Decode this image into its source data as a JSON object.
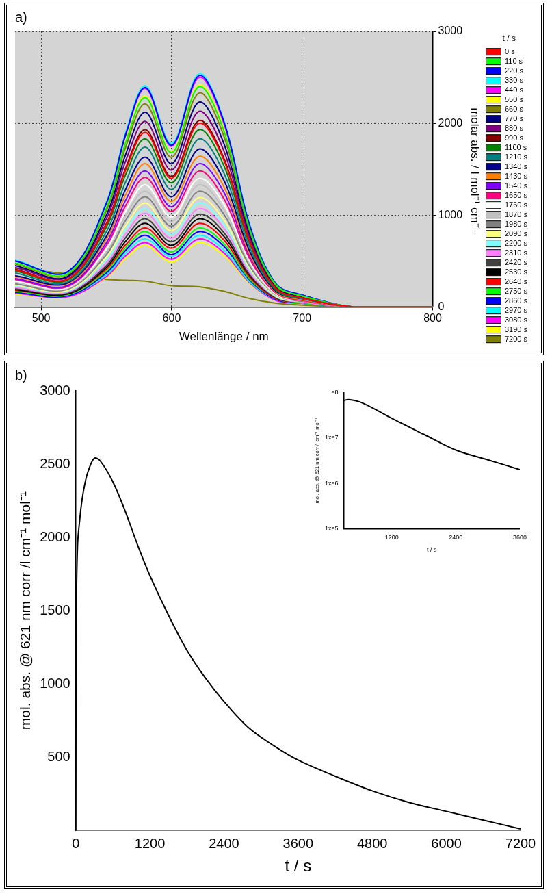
{
  "chart_data": [
    {
      "type": "line",
      "title": "a)",
      "x_label": "Wellenlänge / nm",
      "y_label": "molar abs. / l mol⁻¹ cm⁻¹",
      "legend_title": "t / s",
      "legend": "right",
      "grid": true,
      "xlim": [
        480,
        800
      ],
      "xticks": [
        500,
        600,
        700,
        800
      ],
      "ylim": [
        0,
        3000
      ],
      "yticks": [
        0,
        1000,
        2000,
        3000
      ],
      "x": [
        480,
        520,
        550,
        565,
        580,
        600,
        621,
        640,
        660,
        680,
        700,
        740,
        800
      ],
      "series": [
        {
          "name": "0 s",
          "color": "#ff0000",
          "values": [
            400,
            300,
            900,
            1500,
            1900,
            1400,
            2000,
            1600,
            700,
            200,
            100,
            0,
            0
          ]
        },
        {
          "name": "110 s",
          "color": "#00ff00",
          "values": [
            480,
            360,
            1080,
            1800,
            2280,
            1680,
            2400,
            1920,
            840,
            240,
            120,
            0,
            0
          ]
        },
        {
          "name": "220 s",
          "color": "#0000ff",
          "values": [
            500,
            380,
            1130,
            1890,
            2390,
            1760,
            2520,
            2020,
            880,
            250,
            130,
            0,
            0
          ]
        },
        {
          "name": "330 s",
          "color": "#00ffff",
          "values": [
            510,
            380,
            1140,
            1910,
            2410,
            1780,
            2540,
            2030,
            890,
            250,
            130,
            0,
            0
          ]
        },
        {
          "name": "440 s",
          "color": "#ff00ff",
          "values": [
            500,
            380,
            1130,
            1880,
            2380,
            1750,
            2500,
            2000,
            880,
            250,
            130,
            0,
            0
          ]
        },
        {
          "name": "550 s",
          "color": "#ffff00",
          "values": [
            480,
            360,
            1090,
            1820,
            2300,
            1690,
            2420,
            1940,
            850,
            240,
            120,
            0,
            0
          ]
        },
        {
          "name": "660 s",
          "color": "#808000",
          "values": [
            470,
            350,
            1050,
            1750,
            2210,
            1630,
            2330,
            1860,
            820,
            230,
            120,
            0,
            0
          ]
        },
        {
          "name": "770 s",
          "color": "#000080",
          "values": [
            450,
            330,
            1000,
            1670,
            2120,
            1560,
            2230,
            1780,
            780,
            220,
            110,
            0,
            0
          ]
        },
        {
          "name": "880 s",
          "color": "#800080",
          "values": [
            430,
            320,
            960,
            1600,
            2020,
            1490,
            2130,
            1700,
            750,
            210,
            110,
            0,
            0
          ]
        },
        {
          "name": "990 s",
          "color": "#800000",
          "values": [
            410,
            300,
            910,
            1520,
            1930,
            1420,
            2030,
            1620,
            710,
            200,
            100,
            0,
            0
          ]
        },
        {
          "name": "1100 s",
          "color": "#008000",
          "values": [
            390,
            290,
            870,
            1450,
            1830,
            1350,
            1930,
            1540,
            680,
            190,
            100,
            0,
            0
          ]
        },
        {
          "name": "1210 s",
          "color": "#008080",
          "values": [
            370,
            270,
            820,
            1370,
            1740,
            1280,
            1830,
            1460,
            640,
            180,
            90,
            0,
            0
          ]
        },
        {
          "name": "1340 s",
          "color": "#00008b",
          "values": [
            340,
            260,
            770,
            1290,
            1630,
            1200,
            1720,
            1380,
            600,
            170,
            90,
            0,
            0
          ]
        },
        {
          "name": "1430 s",
          "color": "#ff8000",
          "values": [
            330,
            250,
            740,
            1230,
            1560,
            1150,
            1640,
            1310,
            570,
            160,
            80,
            0,
            0
          ]
        },
        {
          "name": "1540 s",
          "color": "#8000ff",
          "values": [
            310,
            230,
            700,
            1170,
            1480,
            1090,
            1560,
            1250,
            550,
            160,
            80,
            0,
            0
          ]
        },
        {
          "name": "1650 s",
          "color": "#ff0080",
          "values": [
            300,
            220,
            670,
            1110,
            1410,
            1040,
            1480,
            1180,
            520,
            150,
            70,
            0,
            0
          ]
        },
        {
          "name": "1760 s",
          "color": "#ffffff",
          "values": [
            280,
            210,
            630,
            1050,
            1330,
            980,
            1400,
            1120,
            490,
            140,
            70,
            0,
            0
          ]
        },
        {
          "name": "1870 s",
          "color": "#c0c0c0",
          "values": [
            270,
            200,
            600,
            1000,
            1260,
            930,
            1330,
            1060,
            470,
            130,
            70,
            0,
            0
          ]
        },
        {
          "name": "1980 s",
          "color": "#808080",
          "values": [
            250,
            190,
            570,
            950,
            1200,
            880,
            1260,
            1010,
            440,
            130,
            60,
            0,
            0
          ]
        },
        {
          "name": "2090 s",
          "color": "#ffff80",
          "values": [
            240,
            180,
            540,
            890,
            1130,
            830,
            1190,
            950,
            420,
            120,
            60,
            0,
            0
          ]
        },
        {
          "name": "2200 s",
          "color": "#80ffff",
          "values": [
            230,
            170,
            510,
            850,
            1070,
            790,
            1130,
            900,
            400,
            110,
            60,
            0,
            0
          ]
        },
        {
          "name": "2310 s",
          "color": "#ff80ff",
          "values": [
            210,
            160,
            480,
            800,
            1020,
            750,
            1070,
            860,
            370,
            110,
            50,
            0,
            0
          ]
        },
        {
          "name": "2420 s",
          "color": "#404040",
          "values": [
            200,
            150,
            450,
            760,
            960,
            710,
            1010,
            810,
            350,
            100,
            50,
            0,
            0
          ]
        },
        {
          "name": "2530 s",
          "color": "#000000",
          "values": [
            190,
            140,
            430,
            720,
            910,
            670,
            960,
            770,
            340,
            100,
            50,
            0,
            0
          ]
        },
        {
          "name": "2640 s",
          "color": "#ff0000",
          "values": [
            180,
            140,
            410,
            680,
            860,
            640,
            910,
            730,
            320,
            90,
            50,
            0,
            0
          ]
        },
        {
          "name": "2750 s",
          "color": "#00ff00",
          "values": [
            170,
            130,
            390,
            650,
            820,
            600,
            860,
            690,
            300,
            90,
            40,
            0,
            0
          ]
        },
        {
          "name": "2860 s",
          "color": "#0000ff",
          "values": [
            160,
            120,
            370,
            620,
            780,
            570,
            820,
            660,
            290,
            80,
            40,
            0,
            0
          ]
        },
        {
          "name": "2970 s",
          "color": "#00ffff",
          "values": [
            160,
            120,
            350,
            590,
            740,
            550,
            780,
            620,
            270,
            80,
            40,
            0,
            0
          ]
        },
        {
          "name": "3080 s",
          "color": "#ff00ff",
          "values": [
            150,
            110,
            330,
            560,
            700,
            520,
            740,
            590,
            260,
            70,
            40,
            0,
            0
          ]
        },
        {
          "name": "3190 s",
          "color": "#ffff00",
          "values": [
            140,
            110,
            320,
            530,
            670,
            490,
            700,
            560,
            250,
            70,
            40,
            0,
            0
          ]
        },
        {
          "name": "7200 s",
          "color": "#808000",
          "values": [
            420,
            360,
            300,
            290,
            280,
            230,
            220,
            170,
            90,
            40,
            20,
            0,
            0
          ]
        }
      ]
    },
    {
      "type": "line",
      "title": "b)",
      "x_label": "t / s",
      "y_label": "mol. abs. @ 621 nm corr /l cm⁻¹ mol⁻¹",
      "grid": false,
      "color": "#000000",
      "xlim": [
        0,
        7200
      ],
      "xticks": [
        0,
        1200,
        2400,
        3600,
        4800,
        6000,
        7200
      ],
      "ylim": [
        0,
        3000
      ],
      "yticks": [
        500,
        1000,
        1500,
        2000,
        2500,
        3000
      ],
      "x": [
        0,
        10,
        30,
        60,
        100,
        150,
        200,
        300,
        400,
        600,
        800,
        1000,
        1200,
        1500,
        1800,
        2100,
        2400,
        2800,
        3200,
        3600,
        4200,
        4800,
        5400,
        6000,
        6600,
        7200
      ],
      "values": [
        0,
        1500,
        1950,
        2100,
        2250,
        2370,
        2450,
        2540,
        2520,
        2380,
        2180,
        1950,
        1740,
        1470,
        1230,
        1040,
        880,
        700,
        580,
        480,
        370,
        270,
        190,
        130,
        70,
        10
      ]
    },
    {
      "type": "line",
      "log": "y",
      "x_label": "t / s",
      "y_label": "mol. abs. @ 621 nm corr /l cm⁻¹ mol⁻¹",
      "grid": false,
      "color": "#000000",
      "xlim": [
        300,
        3600
      ],
      "xticks": [
        1200,
        2400,
        3600
      ],
      "ylim": [
        100000,
        100000000
      ],
      "yticks": [
        {
          "value": 100000,
          "label": "1xe5"
        },
        {
          "value": 1000000,
          "label": "1xe6"
        },
        {
          "value": 10000000,
          "label": "1xe7"
        },
        {
          "value": 100000000,
          "label": "e8"
        }
      ],
      "x": [
        300,
        400,
        600,
        900,
        1200,
        1800,
        2400,
        3000,
        3600
      ],
      "values": [
        67000000,
        70000000,
        62000000,
        42000000,
        27000000,
        12000000,
        5400000,
        3300000,
        2000000
      ]
    }
  ]
}
